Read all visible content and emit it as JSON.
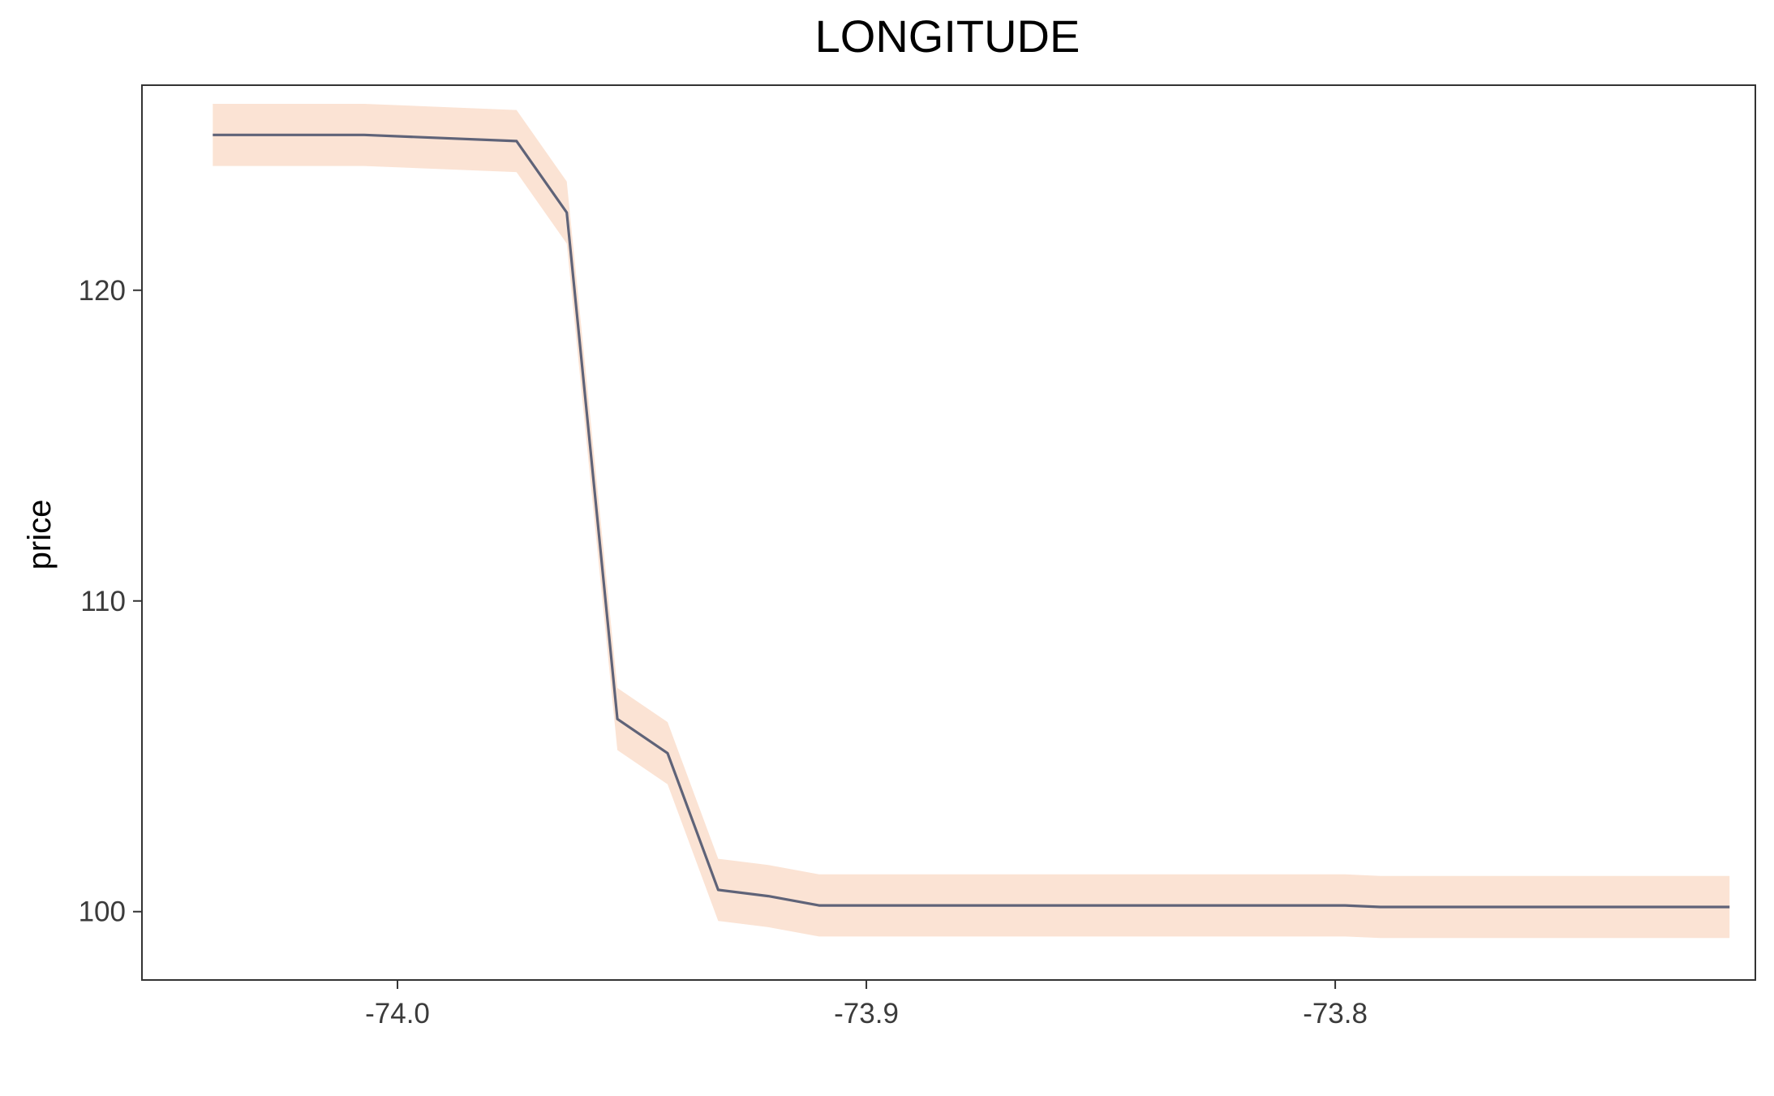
{
  "chart_data": {
    "type": "line",
    "title": "LONGITUDE",
    "xlabel": "",
    "ylabel": "price",
    "xlim": [
      -74.0545,
      -73.7104
    ],
    "ylim": [
      97.8,
      126.6
    ],
    "grid": false,
    "legend": "none",
    "x_ticks": [
      -74.0,
      -73.9,
      -73.8
    ],
    "x_tick_labels": [
      "-74.0",
      "-73.9",
      "-73.8"
    ],
    "y_ticks": [
      100,
      110,
      120
    ],
    "y_tick_labels": [
      "100",
      "110",
      "120"
    ],
    "series": [
      {
        "x": [
          -74.0394,
          -74.0071,
          -73.9746,
          -73.9639,
          -73.9531,
          -73.9424,
          -73.9316,
          -73.9209,
          -73.9101,
          -73.7979,
          -73.7904,
          -73.7159
        ],
        "y": [
          125.0,
          125.0,
          124.8,
          122.5,
          106.2,
          105.1,
          100.7,
          100.5,
          100.2,
          100.2,
          100.15,
          100.15
        ],
        "lower": [
          124.0,
          124.0,
          123.8,
          121.5,
          105.2,
          104.1,
          99.7,
          99.5,
          99.2,
          99.2,
          99.15,
          99.15
        ],
        "upper": [
          126.0,
          126.0,
          125.8,
          123.5,
          107.2,
          106.1,
          101.7,
          101.5,
          101.2,
          101.2,
          101.15,
          101.15
        ]
      }
    ],
    "colors": {
      "line": "#5f6378",
      "band": "#fbe3d4",
      "frame": "#333333",
      "tick": "#333333"
    }
  }
}
